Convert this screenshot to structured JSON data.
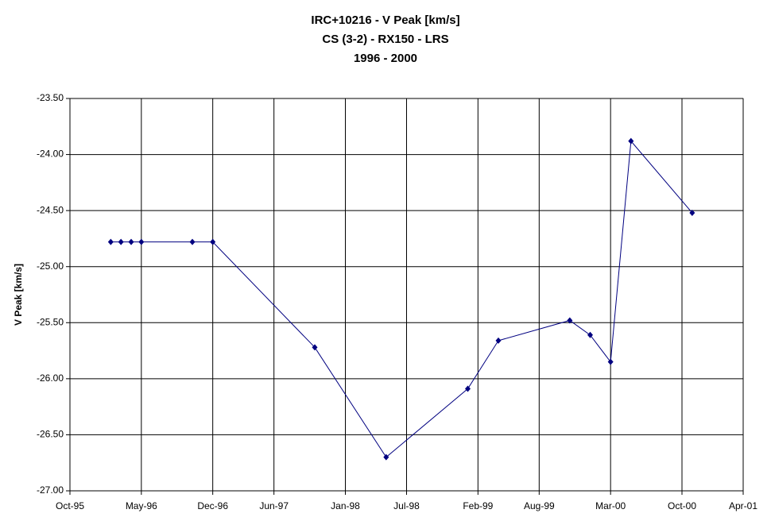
{
  "chart_data": {
    "type": "line",
    "title": [
      "IRC+10216 - V Peak [km/s]",
      "CS (3-2) - RX150 - LRS",
      "1996 - 2000"
    ],
    "y_label": "V Peak [km/s]",
    "x": [
      "1996-02",
      "1996-03",
      "1996-04",
      "1996-05",
      "1996-10",
      "1996-12",
      "1997-10",
      "1998-05",
      "1999-01",
      "1999-04",
      "1999-11",
      "2000-01",
      "2000-03",
      "2000-05",
      "2000-11"
    ],
    "values": [
      -24.78,
      -24.78,
      -24.78,
      -24.78,
      -24.78,
      -24.78,
      -25.72,
      -26.7,
      -26.09,
      -25.66,
      -25.48,
      -25.61,
      -25.85,
      -23.88,
      -24.52
    ],
    "color": "#000080",
    "xlim": [
      "1995-10",
      "2001-04"
    ],
    "xticks": [
      {
        "value": "1995-10",
        "label": "Oct-95"
      },
      {
        "value": "1996-05",
        "label": "May-96"
      },
      {
        "value": "1996-12",
        "label": "Dec-96"
      },
      {
        "value": "1997-06",
        "label": "Jun-97"
      },
      {
        "value": "1998-01",
        "label": "Jan-98"
      },
      {
        "value": "1998-07",
        "label": "Jul-98"
      },
      {
        "value": "1999-02",
        "label": "Feb-99"
      },
      {
        "value": "1999-08",
        "label": "Aug-99"
      },
      {
        "value": "2000-03",
        "label": "Mar-00"
      },
      {
        "value": "2000-10",
        "label": "Oct-00"
      },
      {
        "value": "2001-04",
        "label": "Apr-01"
      }
    ],
    "ylim": [
      -27,
      -23.5
    ],
    "yticks": [
      {
        "value": -27,
        "label": "-27.00"
      },
      {
        "value": -26.5,
        "label": "-26.50"
      },
      {
        "value": -26,
        "label": "-26.00"
      },
      {
        "value": -25.5,
        "label": "-25.50"
      },
      {
        "value": -25,
        "label": "-25.00"
      },
      {
        "value": -24.5,
        "label": "-24.50"
      },
      {
        "value": -24,
        "label": "-24.00"
      },
      {
        "value": -23.5,
        "label": "-23.50"
      }
    ],
    "grid": true
  }
}
